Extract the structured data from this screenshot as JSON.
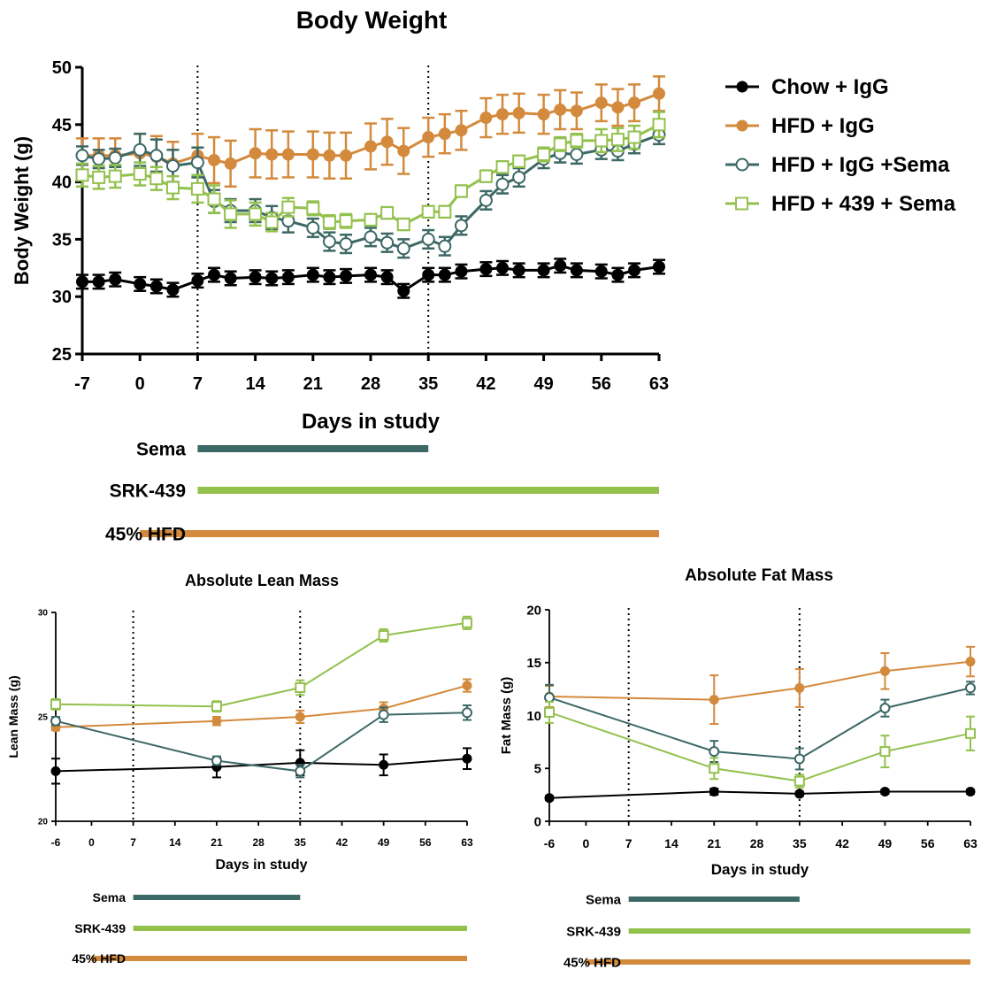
{
  "colors": {
    "chow": "#000000",
    "hfd_igg": "#d38a3c",
    "hfd_igg_sema": "#3c6866",
    "hfd_439_sema": "#93c14e"
  },
  "chart_data": [
    {
      "type": "line",
      "title": "Body Weight",
      "xlabel": "Days in study",
      "ylabel": "Body Weight (g)",
      "xlim": [
        -7,
        63
      ],
      "ylim": [
        25,
        50
      ],
      "xticks": [
        "-7",
        "0",
        "7",
        "14",
        "21",
        "28",
        "35",
        "42",
        "49",
        "56",
        "63"
      ],
      "yticks": [
        "25",
        "30",
        "35",
        "40",
        "45",
        "50"
      ],
      "vlines": [
        7,
        35
      ],
      "legend": "right",
      "series": [
        {
          "name": "Chow + IgG",
          "color": "#000000",
          "marker": "filled-circle",
          "x": [
            -7,
            -5,
            -3,
            0,
            2,
            4,
            7,
            9,
            11,
            14,
            16,
            18,
            21,
            23,
            25,
            28,
            30,
            32,
            35,
            37,
            39,
            42,
            44,
            46,
            49,
            51,
            53,
            56,
            58,
            60,
            63
          ],
          "y": [
            31.3,
            31.3,
            31.5,
            31.1,
            30.9,
            30.6,
            31.4,
            31.9,
            31.6,
            31.7,
            31.6,
            31.7,
            31.9,
            31.7,
            31.8,
            31.9,
            31.7,
            30.5,
            31.9,
            31.9,
            32.2,
            32.4,
            32.5,
            32.3,
            32.3,
            32.7,
            32.3,
            32.2,
            31.9,
            32.3,
            32.6
          ],
          "err": [
            0.6,
            0.6,
            0.6,
            0.6,
            0.6,
            0.6,
            0.6,
            0.6,
            0.6,
            0.6,
            0.6,
            0.6,
            0.6,
            0.6,
            0.6,
            0.6,
            0.6,
            0.6,
            0.6,
            0.6,
            0.6,
            0.6,
            0.6,
            0.6,
            0.6,
            0.6,
            0.6,
            0.6,
            0.6,
            0.6,
            0.6
          ]
        },
        {
          "name": "HFD + IgG",
          "color": "#d38a3c",
          "marker": "filled-circle",
          "x": [
            -7,
            -5,
            -3,
            0,
            2,
            4,
            7,
            9,
            11,
            14,
            16,
            18,
            21,
            23,
            25,
            28,
            30,
            32,
            35,
            37,
            39,
            42,
            44,
            46,
            49,
            51,
            53,
            56,
            58,
            60,
            63
          ],
          "y": [
            42.3,
            42.3,
            42.3,
            42.5,
            42.2,
            41.6,
            42.3,
            41.9,
            41.6,
            42.5,
            42.4,
            42.4,
            42.4,
            42.3,
            42.3,
            43.1,
            43.5,
            42.7,
            43.9,
            44.2,
            44.5,
            45.6,
            45.9,
            46.0,
            45.9,
            46.3,
            46.2,
            46.9,
            46.5,
            46.9,
            47.7
          ],
          "err": [
            1.5,
            1.5,
            1.5,
            1.7,
            1.8,
            1.9,
            1.9,
            2.0,
            2.0,
            2.1,
            2.1,
            2.0,
            2.0,
            2.0,
            2.0,
            2.0,
            2.0,
            2.0,
            1.7,
            1.7,
            1.7,
            1.7,
            1.7,
            1.7,
            1.7,
            1.7,
            1.6,
            1.6,
            1.6,
            1.6,
            1.5
          ]
        },
        {
          "name": "HFD + IgG +Sema",
          "color": "#3c6866",
          "marker": "open-circle",
          "x": [
            -7,
            -5,
            -3,
            0,
            2,
            4,
            7,
            9,
            11,
            14,
            16,
            18,
            21,
            23,
            25,
            28,
            30,
            32,
            35,
            37,
            39,
            42,
            44,
            46,
            49,
            51,
            53,
            56,
            58,
            60,
            63
          ],
          "y": [
            42.3,
            42.0,
            42.1,
            42.8,
            42.3,
            41.4,
            41.7,
            38.3,
            37.5,
            37.5,
            36.9,
            36.6,
            36.0,
            34.8,
            34.6,
            35.2,
            34.7,
            34.2,
            35.0,
            34.4,
            36.2,
            38.4,
            39.8,
            40.4,
            42.0,
            42.5,
            42.4,
            42.8,
            42.7,
            43.3,
            44.1
          ],
          "err": [
            0.8,
            0.8,
            0.8,
            1.4,
            1.4,
            1.4,
            1.3,
            1.0,
            1.0,
            1.0,
            1.0,
            1.0,
            0.8,
            0.8,
            0.8,
            0.8,
            0.8,
            0.8,
            0.8,
            0.8,
            0.8,
            0.8,
            0.8,
            0.8,
            0.8,
            0.8,
            0.8,
            0.8,
            0.8,
            0.8,
            0.8
          ]
        },
        {
          "name": "HFD + 439 + Sema",
          "color": "#93c14e",
          "marker": "open-square",
          "x": [
            -7,
            -5,
            -3,
            0,
            2,
            4,
            7,
            9,
            11,
            14,
            16,
            18,
            21,
            23,
            25,
            28,
            30,
            32,
            35,
            37,
            39,
            42,
            44,
            46,
            49,
            51,
            53,
            56,
            58,
            60,
            63
          ],
          "y": [
            40.6,
            40.4,
            40.5,
            40.7,
            40.3,
            39.5,
            39.4,
            38.5,
            37.2,
            37.2,
            36.5,
            37.8,
            37.7,
            36.5,
            36.6,
            36.7,
            37.3,
            36.3,
            37.4,
            37.4,
            39.2,
            40.5,
            41.3,
            41.8,
            42.4,
            43.3,
            43.6,
            43.6,
            43.7,
            43.9,
            45.0
          ],
          "err": [
            1.0,
            1.0,
            1.0,
            1.0,
            1.0,
            1.0,
            1.2,
            1.2,
            1.2,
            1.0,
            0.8,
            0.8,
            0.6,
            0.6,
            0.6,
            0.5,
            0.5,
            0.5,
            0.5,
            0.5,
            0.5,
            0.5,
            0.5,
            0.5,
            0.6,
            0.6,
            0.6,
            1.0,
            1.0,
            1.0,
            1.1
          ]
        }
      ],
      "bars": [
        {
          "label": "Sema",
          "color": "#3c6866",
          "start": 7,
          "end": 35
        },
        {
          "label": "SRK-439",
          "color": "#93c14e",
          "start": 7,
          "end": 63
        },
        {
          "label": "45% HFD",
          "color": "#d38a3c",
          "start": 0,
          "end": 63
        }
      ]
    },
    {
      "type": "line",
      "title": "Absolute Lean Mass",
      "xlabel": "Days in study",
      "ylabel": "Lean Mass (g)",
      "xlim": [
        -6,
        63
      ],
      "ylim": [
        20,
        30
      ],
      "xticks": [
        "-6",
        "0",
        "7",
        "14",
        "21",
        "28",
        "35",
        "42",
        "49",
        "56",
        "63"
      ],
      "yticks": [
        "20",
        "25",
        "30"
      ],
      "vlines": [
        7,
        35
      ],
      "series": [
        {
          "name": "Chow + IgG",
          "x": [
            -6,
            21,
            35,
            49,
            63
          ],
          "y": [
            22.4,
            22.6,
            22.8,
            22.7,
            23.0
          ],
          "err": [
            0.6,
            0.5,
            0.6,
            0.5,
            0.5
          ]
        },
        {
          "name": "HFD + IgG",
          "x": [
            -6,
            21,
            35,
            49,
            63
          ],
          "y": [
            24.5,
            24.8,
            25.0,
            25.4,
            26.5
          ],
          "err": [
            0.15,
            0.2,
            0.3,
            0.3,
            0.3
          ]
        },
        {
          "name": "HFD + IgG +Sema",
          "x": [
            -6,
            21,
            35,
            49,
            63
          ],
          "y": [
            24.8,
            22.9,
            22.4,
            25.1,
            25.2
          ],
          "err": [
            0.2,
            0.2,
            0.3,
            0.35,
            0.35
          ]
        },
        {
          "name": "HFD + 439 + Sema",
          "x": [
            -6,
            21,
            35,
            49,
            63
          ],
          "y": [
            25.6,
            25.5,
            26.4,
            28.9,
            29.5
          ],
          "err": [
            0.25,
            0.25,
            0.35,
            0.3,
            0.3
          ]
        }
      ],
      "bars": [
        {
          "label": "Sema",
          "color": "#3c6866",
          "start": 7,
          "end": 35
        },
        {
          "label": "SRK-439",
          "color": "#93c14e",
          "start": 7,
          "end": 63
        },
        {
          "label": "45% HFD",
          "color": "#d38a3c",
          "start": 0,
          "end": 63
        }
      ]
    },
    {
      "type": "line",
      "title": "Absolute Fat Mass",
      "xlabel": "Days in study",
      "ylabel": "Fat Mass (g)",
      "xlim": [
        -6,
        63
      ],
      "ylim": [
        0,
        20
      ],
      "xticks": [
        "-6",
        "0",
        "7",
        "14",
        "21",
        "28",
        "35",
        "42",
        "49",
        "56",
        "63"
      ],
      "yticks": [
        "0",
        "5",
        "10",
        "15",
        "20"
      ],
      "vlines": [
        7,
        35
      ],
      "series": [
        {
          "name": "Chow + IgG",
          "x": [
            -6,
            21,
            35,
            49,
            63
          ],
          "y": [
            2.2,
            2.8,
            2.6,
            2.8,
            2.8
          ],
          "err": [
            0.2,
            0.3,
            0.2,
            0.2,
            0.2
          ]
        },
        {
          "name": "HFD + IgG",
          "x": [
            -6,
            21,
            35,
            49,
            63
          ],
          "y": [
            11.8,
            11.5,
            12.6,
            14.2,
            15.1
          ],
          "err": [
            1.0,
            2.3,
            1.8,
            1.7,
            1.4
          ]
        },
        {
          "name": "HFD + IgG +Sema",
          "x": [
            -6,
            21,
            35,
            49,
            63
          ],
          "y": [
            11.7,
            6.6,
            5.9,
            10.7,
            12.6
          ],
          "err": [
            1.2,
            1.0,
            1.0,
            0.8,
            0.6
          ]
        },
        {
          "name": "HFD + 439 + Sema",
          "x": [
            -6,
            21,
            35,
            49,
            63
          ],
          "y": [
            10.3,
            5.0,
            3.8,
            6.6,
            8.3
          ],
          "err": [
            1.0,
            1.0,
            0.6,
            1.5,
            1.6
          ]
        }
      ],
      "bars": [
        {
          "label": "Sema",
          "color": "#3c6866",
          "start": 7,
          "end": 35
        },
        {
          "label": "SRK-439",
          "color": "#93c14e",
          "start": 7,
          "end": 63
        },
        {
          "label": "45% HFD",
          "color": "#d38a3c",
          "start": 0,
          "end": 63
        }
      ]
    }
  ]
}
